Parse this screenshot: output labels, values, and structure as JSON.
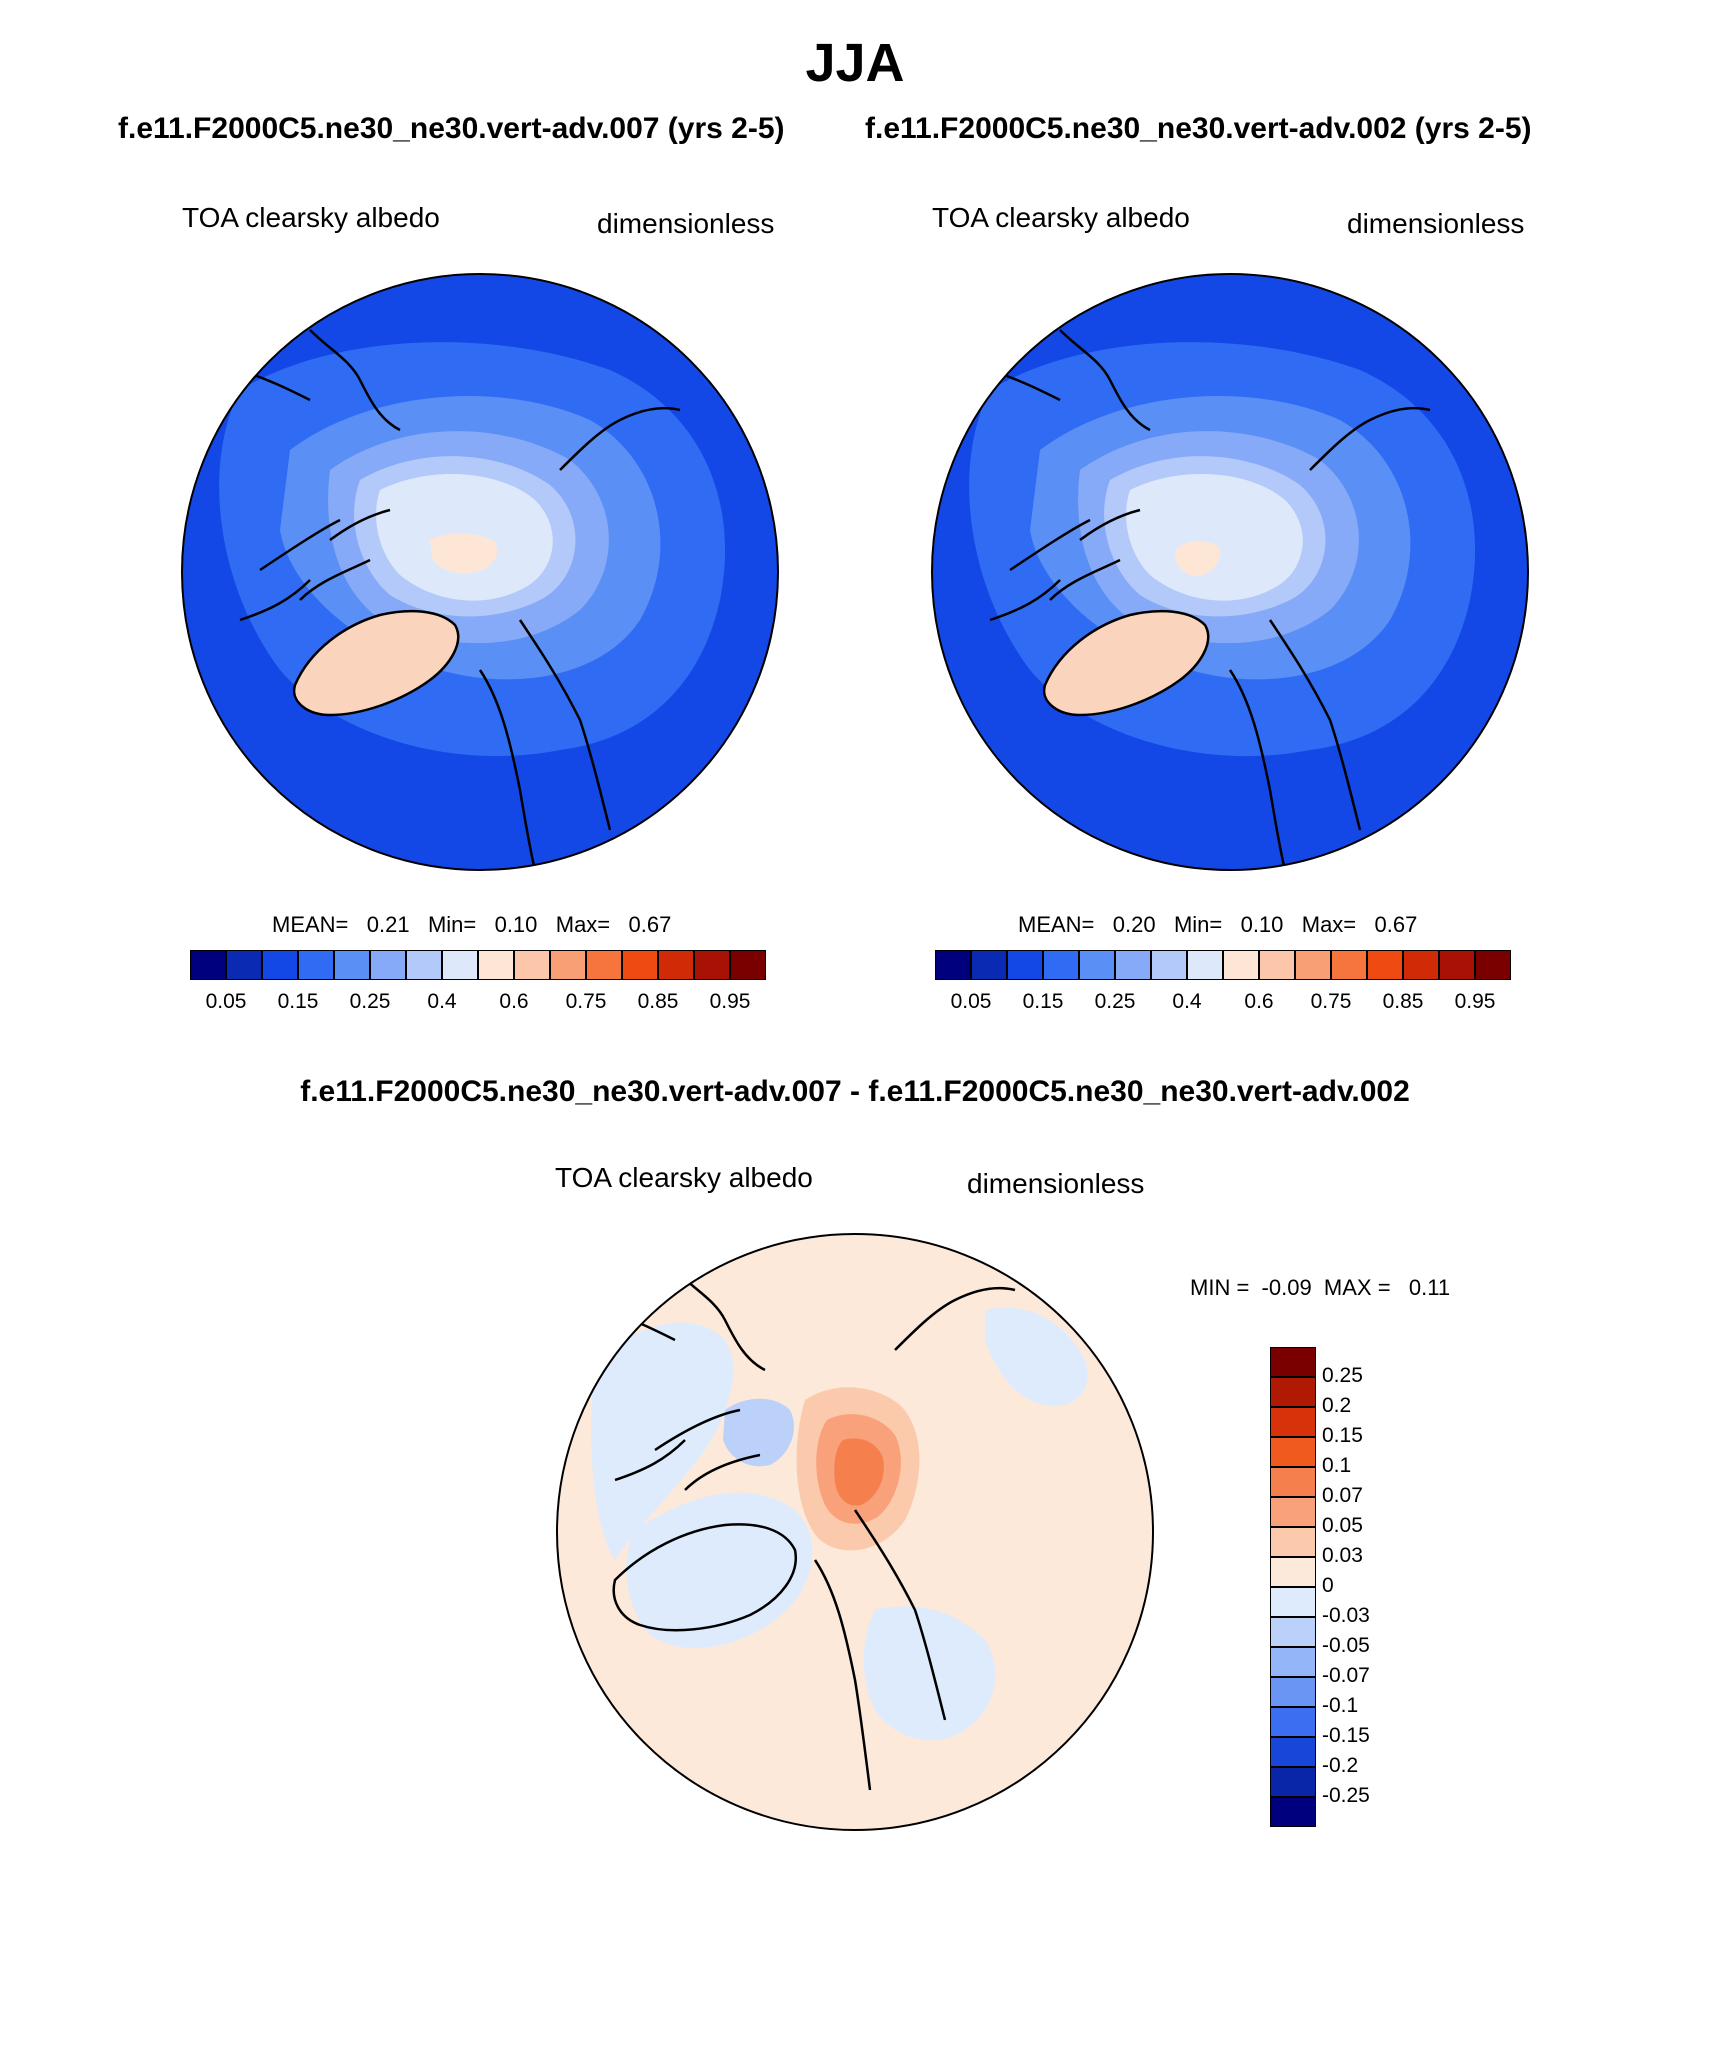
{
  "page": {
    "title": "JJA"
  },
  "chart_data": [
    {
      "type": "heatmap",
      "projection": "north-polar-stereographic",
      "case_title": "f.e11.F2000C5.ne30_ne30.vert-adv.007 (yrs 2-5)",
      "variable": "TOA clearsky albedo",
      "units": "dimensionless",
      "stats": {
        "mean_label": "MEAN=",
        "mean": "0.21",
        "min_label": "Min=",
        "min": "0.10",
        "max_label": "Max=",
        "max": "0.67"
      },
      "colorbar": {
        "ticks": [
          "0.05",
          "0.15",
          "0.25",
          "0.4",
          "0.6",
          "0.75",
          "0.85",
          "0.95"
        ],
        "colors": [
          "#00007f",
          "#0a2ab4",
          "#1448e6",
          "#2f6cf3",
          "#5a8ff5",
          "#86aaf7",
          "#b3c9f9",
          "#dde9fb",
          "#fde6d6",
          "#fbc6a9",
          "#f89f75",
          "#f5753c",
          "#ee4a12",
          "#d02a06",
          "#a81204",
          "#7a0000"
        ]
      }
    },
    {
      "type": "heatmap",
      "projection": "north-polar-stereographic",
      "case_title": "f.e11.F2000C5.ne30_ne30.vert-adv.002 (yrs 2-5)",
      "variable": "TOA clearsky albedo",
      "units": "dimensionless",
      "stats": {
        "mean_label": "MEAN=",
        "mean": "0.20",
        "min_label": "Min=",
        "min": "0.10",
        "max_label": "Max=",
        "max": "0.67"
      },
      "colorbar": {
        "ticks": [
          "0.05",
          "0.15",
          "0.25",
          "0.4",
          "0.6",
          "0.75",
          "0.85",
          "0.95"
        ],
        "colors": [
          "#00007f",
          "#0a2ab4",
          "#1448e6",
          "#2f6cf3",
          "#5a8ff5",
          "#86aaf7",
          "#b3c9f9",
          "#dde9fb",
          "#fde6d6",
          "#fbc6a9",
          "#f89f75",
          "#f5753c",
          "#ee4a12",
          "#d02a06",
          "#a81204",
          "#7a0000"
        ]
      }
    },
    {
      "type": "heatmap",
      "projection": "north-polar-stereographic",
      "case_title": "f.e11.F2000C5.ne30_ne30.vert-adv.007 - f.e11.F2000C5.ne30_ne30.vert-adv.002",
      "variable": "TOA clearsky albedo",
      "units": "dimensionless",
      "stats": {
        "min_label": "MIN =",
        "min": "-0.09",
        "max_label": "MAX =",
        "max": "0.11"
      },
      "colorbar": {
        "orientation": "vertical",
        "ticks": [
          "0.25",
          "0.2",
          "0.15",
          "0.1",
          "0.07",
          "0.05",
          "0.03",
          "0",
          "-0.03",
          "-0.05",
          "-0.07",
          "-0.1",
          "-0.15",
          "-0.2",
          "-0.25"
        ],
        "colors": [
          "#7a0000",
          "#b01a04",
          "#d8320a",
          "#f05a1e",
          "#f5804e",
          "#f9a17a",
          "#fbc9ab",
          "#fde9da",
          "#deebfc",
          "#bcd1fa",
          "#94b5f8",
          "#6a95f5",
          "#3c6ef1",
          "#1846d8",
          "#0a26a8",
          "#00007f"
        ]
      }
    }
  ]
}
